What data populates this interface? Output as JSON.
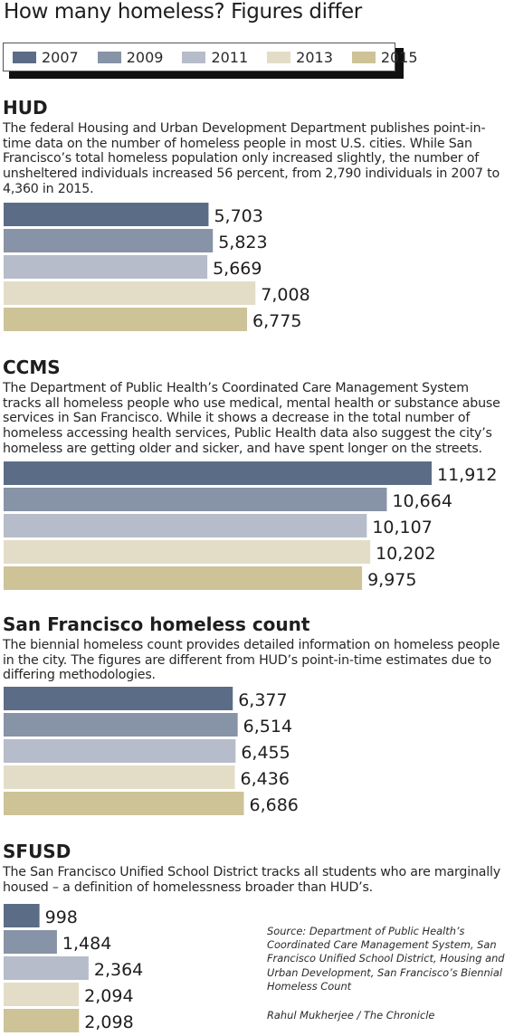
{
  "title": "How many homeless? Figures differ",
  "legend": [
    {
      "label": "2007",
      "color": "#5b6c86"
    },
    {
      "label": "2009",
      "color": "#8793a6"
    },
    {
      "label": "2011",
      "color": "#b6bcc9"
    },
    {
      "label": "2013",
      "color": "#e3ddc8"
    },
    {
      "label": "2015",
      "color": "#cdc397"
    }
  ],
  "sections": [
    {
      "title": "HUD",
      "description": "The federal Housing and Urban Development Department publishes point-in-time data on the number of homeless people in most U.S. cities. While San Francisco’s total homeless population only increased slightly, the number of unsheltered individuals increased 56 percent, from 2,790 individuals in 2007 to 4,360 in 2015."
    },
    {
      "title": "CCMS",
      "description": "The Department of Public Health’s Coordinated Care Management System tracks all homeless people who use medical, mental health or substance abuse services in San Francisco.  While it shows a decrease in the total number of homeless accessing health services, Public Health data also suggest the city’s homeless are getting older and sicker, and have spent longer on the streets."
    },
    {
      "title": "San Francisco homeless count",
      "description": "The biennial homeless count provides detailed information on homeless people in the city. The figures are different from HUD’s point-in-time estimates due to differing methodologies."
    },
    {
      "title": "SFUSD",
      "description": "The San Francisco Unified School District tracks all students who are marginally housed – a definition of homelessness broader than HUD’s."
    }
  ],
  "chart_data": [
    {
      "type": "bar",
      "title": "HUD",
      "categories": [
        "2007",
        "2009",
        "2011",
        "2013",
        "2015"
      ],
      "values": [
        5703,
        5823,
        5669,
        7008,
        6775
      ],
      "labels": [
        "5,703",
        "5,823",
        "5,669",
        "7,008",
        "6,775"
      ]
    },
    {
      "type": "bar",
      "title": "CCMS",
      "categories": [
        "2007",
        "2009",
        "2011",
        "2013",
        "2015"
      ],
      "values": [
        11912,
        10664,
        10107,
        10202,
        9975
      ],
      "labels": [
        "11,912",
        "10,664",
        "10,107",
        "10,202",
        "9,975"
      ]
    },
    {
      "type": "bar",
      "title": "San Francisco homeless count",
      "categories": [
        "2007",
        "2009",
        "2011",
        "2013",
        "2015"
      ],
      "values": [
        6377,
        6514,
        6455,
        6436,
        6686
      ],
      "labels": [
        "6,377",
        "6,514",
        "6,455",
        "6,436",
        "6,686"
      ]
    },
    {
      "type": "bar",
      "title": "SFUSD",
      "categories": [
        "2007",
        "2009",
        "2011",
        "2013",
        "2015"
      ],
      "values": [
        998,
        1484,
        2364,
        2094,
        2098
      ],
      "labels": [
        "998",
        "1,484",
        "2,364",
        "2,094",
        "2,098"
      ]
    }
  ],
  "source": "Source: Department of Public Health’s Coordinated Care Management System, San Francisco Unified School District, Housing and Urban Development, San Francisco’s Biennial Homeless Count",
  "credit": "Rahul Mukherjee / The Chronicle"
}
